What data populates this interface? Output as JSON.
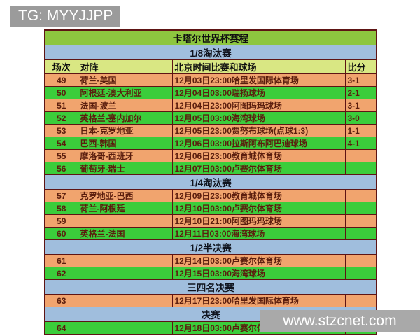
{
  "overlay": {
    "tg_label": "TG: MYYJJPP",
    "watermark": "www.stzcnet.com"
  },
  "table": {
    "title": "卡塔尔世界杯赛程",
    "columns": [
      "场次",
      "对阵",
      "北京时间比赛和球场",
      "比分"
    ],
    "sections": [
      {
        "name": "1/8淘汰赛",
        "show_header": true,
        "rows": [
          {
            "no": "49",
            "match": "荷兰-美国",
            "time_venue": "12月03日23:00哈里发国际体育场",
            "score": "3-1"
          },
          {
            "no": "50",
            "match": "阿根廷-澳大利亚",
            "time_venue": "12月04日03:00瑞扬球场",
            "score": "2-1"
          },
          {
            "no": "51",
            "match": "法国-波兰",
            "time_venue": "12月04日23:00阿图玛玛球场",
            "score": "3-1"
          },
          {
            "no": "52",
            "match": "英格兰-塞内加尔",
            "time_venue": "12月05日03:00海湾球场",
            "score": "3-0"
          },
          {
            "no": "53",
            "match": "日本-克罗地亚",
            "time_venue": "12月05日23:00贾努布球场(点球1:3)",
            "score": "1-1"
          },
          {
            "no": "54",
            "match": "巴西-韩国",
            "time_venue": "12月06日03:00拉斯阿布阿巴迪球场",
            "score": "4-1"
          },
          {
            "no": "55",
            "match": "摩洛哥-西班牙",
            "time_venue": "12月06日23:00教育城体育场",
            "score": ""
          },
          {
            "no": "56",
            "match": "葡萄牙-瑞士",
            "time_venue": "12月07日03:00卢赛尔体育场",
            "score": ""
          }
        ]
      },
      {
        "name": "1/4淘汰赛",
        "show_header": false,
        "rows": [
          {
            "no": "57",
            "match": "克罗地亚-巴西",
            "time_venue": "12月09日23:00教育城体育场",
            "score": ""
          },
          {
            "no": "58",
            "match": "荷兰-阿根廷",
            "time_venue": "12月10日03:00卢赛尔体育场",
            "score": ""
          },
          {
            "no": "59",
            "match": "",
            "time_venue": "12月10日21:00阿图玛玛球场",
            "score": ""
          },
          {
            "no": "60",
            "match": "英格兰-法国",
            "time_venue": "12月11日03:00海湾球场",
            "score": ""
          }
        ]
      },
      {
        "name": "1/2半决赛",
        "show_header": false,
        "rows": [
          {
            "no": "61",
            "match": "",
            "time_venue": "12月14日03:00卢赛尔体育场",
            "score": ""
          },
          {
            "no": "62",
            "match": "",
            "time_venue": "12月15日03:00海湾球场",
            "score": ""
          }
        ]
      },
      {
        "name": "三四名决赛",
        "show_header": false,
        "rows": [
          {
            "no": "63",
            "match": "",
            "time_venue": "12月17日23:00哈里发国际体育场",
            "score": ""
          }
        ]
      },
      {
        "name": "决赛",
        "show_header": false,
        "rows": [
          {
            "no": "64",
            "match": "",
            "time_venue": "12月18日03:00卢赛尔体育场",
            "score": ""
          }
        ]
      }
    ]
  },
  "colors": {
    "title_row_bg": "#8dc63f",
    "section_row_bg": "#a0bedd",
    "header_row_bg": "#d9e783",
    "row_odd_bg": "#f1a46e",
    "row_even_bg": "#3bcd3b",
    "grid_border": "#5e1414",
    "data_text": "#5b1e0e",
    "badge_bg": "#9b9b9b",
    "badge_text": "#ffffff",
    "watermark_bg": "#a9a9a9",
    "watermark_text": "#ffffff"
  }
}
